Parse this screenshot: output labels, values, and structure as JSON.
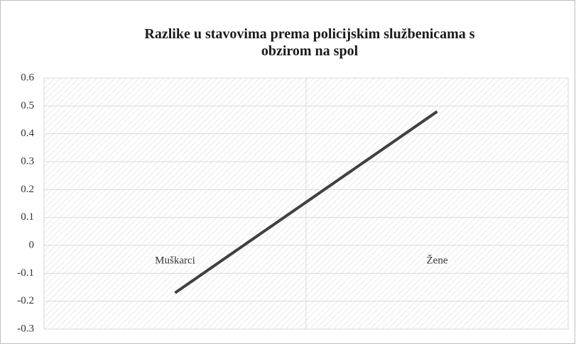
{
  "chart_data": {
    "type": "line",
    "title": "Razlike u stavovima prema policijskim službenicama s obzirom na spol",
    "categories": [
      "Muškarci",
      "Žene"
    ],
    "series": [
      {
        "name": "Razlike",
        "color": "#404040",
        "values": [
          -0.17,
          0.48
        ]
      }
    ],
    "ylim": [
      -0.3,
      0.6
    ],
    "yticks": [
      -0.3,
      -0.2,
      -0.1,
      0,
      0.1,
      0.2,
      0.3,
      0.4,
      0.5,
      0.6
    ],
    "grid": true
  }
}
